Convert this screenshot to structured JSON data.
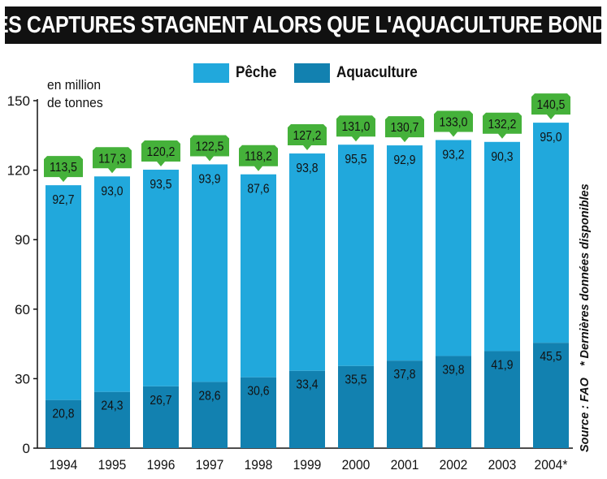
{
  "title": "LES CAPTURES STAGNENT ALORS QUE L'AQUACULTURE BONDIT",
  "unit_label_line1": "en million",
  "unit_label_line2": "de tonnes",
  "source": "Source : FAO",
  "footnote": "* Dernières données disponibles",
  "colors": {
    "peche": "#21a8dc",
    "aquaculture": "#1281b0",
    "total_badge": "#45b13a",
    "title_bg": "#111111"
  },
  "chart_data": {
    "type": "bar",
    "stacked": true,
    "categories": [
      "1994",
      "1995",
      "1996",
      "1997",
      "1998",
      "1999",
      "2000",
      "2001",
      "2002",
      "2003",
      "2004*"
    ],
    "series": [
      {
        "name": "Aquaculture",
        "values": [
          20.8,
          24.3,
          26.7,
          28.6,
          30.6,
          33.4,
          35.5,
          37.8,
          39.8,
          41.9,
          45.5
        ]
      },
      {
        "name": "Pêche",
        "values": [
          92.7,
          93.0,
          93.5,
          93.9,
          87.6,
          93.8,
          95.5,
          92.9,
          93.2,
          90.3,
          95.0
        ]
      }
    ],
    "totals": [
      113.5,
      117.3,
      120.2,
      122.5,
      118.2,
      127.2,
      131.0,
      130.7,
      133.0,
      132.2,
      140.5
    ],
    "labels": {
      "aquaculture": [
        "20,8",
        "24,3",
        "26,7",
        "28,6",
        "30,6",
        "33,4",
        "35,5",
        "37,8",
        "39,8",
        "41,9",
        "45,5"
      ],
      "peche": [
        "92,7",
        "93,0",
        "93,5",
        "93,9",
        "87,6",
        "93,8",
        "95,5",
        "92,9",
        "93,2",
        "90,3",
        "95,0"
      ],
      "totals": [
        "113,5",
        "117,3",
        "120,2",
        "122,5",
        "118,2",
        "127,2",
        "131,0",
        "130,7",
        "133,0",
        "132,2",
        "140,5"
      ]
    },
    "ylim": [
      0,
      150
    ],
    "yticks": [
      0,
      30,
      60,
      90,
      120,
      150
    ],
    "grid": false,
    "legend_position": "top"
  }
}
